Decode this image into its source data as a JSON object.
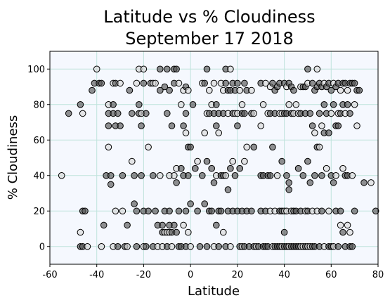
{
  "chart_data": {
    "type": "scatter",
    "title_line1": "Latitude vs % Cloudiness",
    "title_line2": "September 17 2018",
    "xlabel": "Latitude",
    "ylabel": "% Cloudiness",
    "xlim": [
      -60,
      80
    ],
    "ylim": [
      -10,
      110
    ],
    "xticks": [
      -60,
      -40,
      -20,
      0,
      20,
      40,
      60,
      80
    ],
    "yticks": [
      0,
      20,
      40,
      60,
      80,
      100
    ],
    "grid": true,
    "legend": "none",
    "colors": {
      "plot_background": "#f5f8fe",
      "grid": "#bfe3dc",
      "marker_edge": "#000000",
      "marker_fill_dark": "#555555",
      "marker_fill_light": "#d8d8d8"
    },
    "points": [
      [
        -55,
        40
      ],
      [
        -52,
        75
      ],
      [
        -47,
        80
      ],
      [
        -46,
        75
      ],
      [
        -46,
        20
      ],
      [
        -45,
        20
      ],
      [
        -47,
        8
      ],
      [
        -47,
        0
      ],
      [
        -46,
        0
      ],
      [
        -44,
        0
      ],
      [
        -42,
        88
      ],
      [
        -41,
        92
      ],
      [
        -40,
        100
      ],
      [
        -39,
        92
      ],
      [
        -38,
        92
      ],
      [
        -38,
        0
      ],
      [
        -37,
        12
      ],
      [
        -36,
        40
      ],
      [
        -35,
        80
      ],
      [
        -35,
        75
      ],
      [
        -35,
        68
      ],
      [
        -35,
        56
      ],
      [
        -34,
        40
      ],
      [
        -34,
        35
      ],
      [
        -33,
        92
      ],
      [
        -33,
        80
      ],
      [
        -33,
        75
      ],
      [
        -33,
        0
      ],
      [
        -32,
        92
      ],
      [
        -32,
        68
      ],
      [
        -32,
        20
      ],
      [
        -31,
        75
      ],
      [
        -31,
        0
      ],
      [
        -30,
        92
      ],
      [
        -30,
        68
      ],
      [
        -29,
        40
      ],
      [
        -29,
        20
      ],
      [
        -28,
        0
      ],
      [
        -27,
        12
      ],
      [
        -27,
        0
      ],
      [
        -26,
        88
      ],
      [
        -25,
        75
      ],
      [
        -25,
        48
      ],
      [
        -24,
        40
      ],
      [
        -24,
        24
      ],
      [
        -23,
        92
      ],
      [
        -23,
        20
      ],
      [
        -23,
        0
      ],
      [
        -22,
        100
      ],
      [
        -22,
        80
      ],
      [
        -22,
        75
      ],
      [
        -21,
        75
      ],
      [
        -21,
        68
      ],
      [
        -21,
        40
      ],
      [
        -20,
        100
      ],
      [
        -20,
        92
      ],
      [
        -20,
        20
      ],
      [
        -20,
        0
      ],
      [
        -19,
        75
      ],
      [
        -19,
        0
      ],
      [
        -18,
        56
      ],
      [
        -18,
        20
      ],
      [
        -17,
        92
      ],
      [
        -16,
        92
      ],
      [
        -16,
        40
      ],
      [
        -16,
        0
      ],
      [
        -15,
        92
      ],
      [
        -15,
        20
      ],
      [
        -14,
        12
      ],
      [
        -14,
        0
      ],
      [
        -13,
        100
      ],
      [
        -13,
        88
      ],
      [
        -13,
        40
      ],
      [
        -12,
        12
      ],
      [
        -12,
        8
      ],
      [
        -12,
        0
      ],
      [
        -11,
        90
      ],
      [
        -11,
        20
      ],
      [
        -11,
        8
      ],
      [
        -10,
        100
      ],
      [
        -10,
        75
      ],
      [
        -10,
        8
      ],
      [
        -10,
        0
      ],
      [
        -9,
        88
      ],
      [
        -9,
        40
      ],
      [
        -9,
        20
      ],
      [
        -9,
        12
      ],
      [
        -9,
        8
      ],
      [
        -8,
        68
      ],
      [
        -8,
        8
      ],
      [
        -8,
        0
      ],
      [
        -7,
        100
      ],
      [
        -7,
        92
      ],
      [
        -7,
        40
      ],
      [
        -7,
        12
      ],
      [
        -6,
        100
      ],
      [
        -6,
        44
      ],
      [
        -6,
        36
      ],
      [
        -6,
        8
      ],
      [
        -5,
        92
      ],
      [
        -5,
        20
      ],
      [
        -5,
        0
      ],
      [
        -4,
        80
      ],
      [
        -4,
        44
      ],
      [
        -4,
        0
      ],
      [
        -3,
        88
      ],
      [
        -3,
        68
      ],
      [
        -3,
        40
      ],
      [
        -3,
        12
      ],
      [
        -2,
        90
      ],
      [
        -2,
        75
      ],
      [
        -2,
        64
      ],
      [
        -2,
        20
      ],
      [
        -2,
        0
      ],
      [
        -1,
        88
      ],
      [
        -1,
        56
      ],
      [
        -1,
        40
      ],
      [
        -1,
        8
      ],
      [
        0,
        56
      ],
      [
        0,
        24
      ],
      [
        0,
        0
      ],
      [
        1,
        80
      ],
      [
        2,
        44
      ],
      [
        3,
        48
      ],
      [
        3,
        20
      ],
      [
        4,
        0
      ],
      [
        5,
        92
      ],
      [
        5,
        40
      ],
      [
        6,
        92
      ],
      [
        6,
        64
      ],
      [
        6,
        24
      ],
      [
        7,
        100
      ],
      [
        7,
        75
      ],
      [
        7,
        48
      ],
      [
        7,
        0
      ],
      [
        8,
        88
      ],
      [
        8,
        75
      ],
      [
        8,
        20
      ],
      [
        9,
        80
      ],
      [
        9,
        44
      ],
      [
        9,
        20
      ],
      [
        10,
        92
      ],
      [
        10,
        75
      ],
      [
        10,
        36
      ],
      [
        10,
        0
      ],
      [
        11,
        80
      ],
      [
        11,
        68
      ],
      [
        11,
        40
      ],
      [
        11,
        12
      ],
      [
        12,
        75
      ],
      [
        12,
        64
      ],
      [
        12,
        20
      ],
      [
        12,
        0
      ],
      [
        13,
        92
      ],
      [
        13,
        40
      ],
      [
        13,
        20
      ],
      [
        14,
        88
      ],
      [
        14,
        75
      ],
      [
        14,
        40
      ],
      [
        14,
        8
      ],
      [
        15,
        100
      ],
      [
        15,
        92
      ],
      [
        15,
        40
      ],
      [
        15,
        0
      ],
      [
        16,
        88
      ],
      [
        16,
        75
      ],
      [
        16,
        32
      ],
      [
        16,
        20
      ],
      [
        17,
        100
      ],
      [
        17,
        88
      ],
      [
        17,
        44
      ],
      [
        17,
        0
      ],
      [
        18,
        92
      ],
      [
        18,
        75
      ],
      [
        18,
        48
      ],
      [
        18,
        20
      ],
      [
        19,
        88
      ],
      [
        19,
        75
      ],
      [
        19,
        40
      ],
      [
        20,
        92
      ],
      [
        20,
        75
      ],
      [
        20,
        68
      ],
      [
        20,
        20
      ],
      [
        21,
        88
      ],
      [
        21,
        44
      ],
      [
        21,
        0
      ],
      [
        22,
        80
      ],
      [
        22,
        75
      ],
      [
        22,
        20
      ],
      [
        22,
        0
      ],
      [
        23,
        92
      ],
      [
        23,
        75
      ],
      [
        23,
        48
      ],
      [
        23,
        0
      ],
      [
        24,
        88
      ],
      [
        24,
        56
      ],
      [
        24,
        20
      ],
      [
        25,
        0
      ],
      [
        26,
        88
      ],
      [
        26,
        75
      ],
      [
        26,
        20
      ],
      [
        27,
        75
      ],
      [
        27,
        56
      ],
      [
        27,
        0
      ],
      [
        28,
        0
      ],
      [
        29,
        0
      ],
      [
        30,
        92
      ],
      [
        30,
        68
      ],
      [
        30,
        40
      ],
      [
        30,
        20
      ],
      [
        31,
        80
      ],
      [
        31,
        40
      ],
      [
        31,
        0
      ],
      [
        32,
        92
      ],
      [
        32,
        20
      ],
      [
        32,
        0
      ],
      [
        33,
        75
      ],
      [
        33,
        40
      ],
      [
        33,
        0
      ],
      [
        34,
        90
      ],
      [
        34,
        75
      ],
      [
        34,
        40
      ],
      [
        34,
        20
      ],
      [
        35,
        92
      ],
      [
        35,
        56
      ],
      [
        35,
        0
      ],
      [
        36,
        88
      ],
      [
        36,
        75
      ],
      [
        36,
        20
      ],
      [
        36,
        0
      ],
      [
        37,
        90
      ],
      [
        37,
        40
      ],
      [
        37,
        0
      ],
      [
        38,
        92
      ],
      [
        38,
        75
      ],
      [
        38,
        20
      ],
      [
        38,
        0
      ],
      [
        39,
        75
      ],
      [
        39,
        48
      ],
      [
        39,
        20
      ],
      [
        39,
        0
      ],
      [
        40,
        92
      ],
      [
        40,
        75
      ],
      [
        40,
        20
      ],
      [
        40,
        8
      ],
      [
        40,
        0
      ],
      [
        41,
        90
      ],
      [
        41,
        75
      ],
      [
        41,
        40
      ],
      [
        41,
        20
      ],
      [
        41,
        0
      ],
      [
        42,
        92
      ],
      [
        42,
        80
      ],
      [
        42,
        36
      ],
      [
        42,
        32
      ],
      [
        42,
        0
      ],
      [
        43,
        90
      ],
      [
        43,
        75
      ],
      [
        43,
        20
      ],
      [
        43,
        0
      ],
      [
        44,
        88
      ],
      [
        44,
        75
      ],
      [
        44,
        20
      ],
      [
        44,
        0
      ],
      [
        45,
        80
      ],
      [
        45,
        20
      ],
      [
        45,
        0
      ],
      [
        46,
        75
      ],
      [
        46,
        44
      ],
      [
        46,
        0
      ],
      [
        47,
        90
      ],
      [
        47,
        75
      ],
      [
        47,
        20
      ],
      [
        47,
        0
      ],
      [
        48,
        90
      ],
      [
        48,
        40
      ],
      [
        48,
        0
      ],
      [
        49,
        90
      ],
      [
        49,
        75
      ],
      [
        49,
        20
      ],
      [
        49,
        0
      ],
      [
        50,
        100
      ],
      [
        50,
        92
      ],
      [
        50,
        48
      ],
      [
        50,
        20
      ],
      [
        50,
        0
      ],
      [
        51,
        75
      ],
      [
        51,
        36
      ],
      [
        51,
        0
      ],
      [
        52,
        92
      ],
      [
        52,
        68
      ],
      [
        52,
        20
      ],
      [
        52,
        0
      ],
      [
        53,
        88
      ],
      [
        53,
        64
      ],
      [
        53,
        40
      ],
      [
        53,
        0
      ],
      [
        54,
        100
      ],
      [
        54,
        90
      ],
      [
        54,
        56
      ],
      [
        54,
        20
      ],
      [
        55,
        92
      ],
      [
        55,
        75
      ],
      [
        55,
        56
      ],
      [
        55,
        0
      ],
      [
        56,
        90
      ],
      [
        56,
        68
      ],
      [
        56,
        40
      ],
      [
        56,
        20
      ],
      [
        57,
        92
      ],
      [
        57,
        80
      ],
      [
        57,
        64
      ],
      [
        57,
        0
      ],
      [
        58,
        90
      ],
      [
        58,
        75
      ],
      [
        58,
        44
      ],
      [
        59,
        92
      ],
      [
        59,
        64
      ],
      [
        59,
        20
      ],
      [
        59,
        0
      ],
      [
        60,
        88
      ],
      [
        60,
        75
      ],
      [
        60,
        40
      ],
      [
        60,
        0
      ],
      [
        61,
        92
      ],
      [
        61,
        80
      ],
      [
        61,
        36
      ],
      [
        61,
        0
      ],
      [
        62,
        90
      ],
      [
        62,
        68
      ],
      [
        62,
        40
      ],
      [
        62,
        20
      ],
      [
        63,
        92
      ],
      [
        63,
        75
      ],
      [
        63,
        68
      ],
      [
        63,
        0
      ],
      [
        64,
        88
      ],
      [
        64,
        75
      ],
      [
        64,
        20
      ],
      [
        64,
        12
      ],
      [
        65,
        92
      ],
      [
        65,
        80
      ],
      [
        65,
        44
      ],
      [
        65,
        8
      ],
      [
        66,
        92
      ],
      [
        66,
        75
      ],
      [
        66,
        40
      ],
      [
        66,
        0
      ],
      [
        67,
        88
      ],
      [
        67,
        80
      ],
      [
        67,
        40
      ],
      [
        67,
        12
      ],
      [
        68,
        92
      ],
      [
        68,
        75
      ],
      [
        68,
        8
      ],
      [
        68,
        0
      ],
      [
        69,
        92
      ],
      [
        69,
        40
      ],
      [
        69,
        0
      ],
      [
        70,
        92
      ],
      [
        70,
        80
      ],
      [
        70,
        20
      ],
      [
        71,
        88
      ],
      [
        71,
        68
      ],
      [
        72,
        88
      ],
      [
        74,
        36
      ],
      [
        77,
        36
      ],
      [
        79,
        20
      ]
    ]
  }
}
